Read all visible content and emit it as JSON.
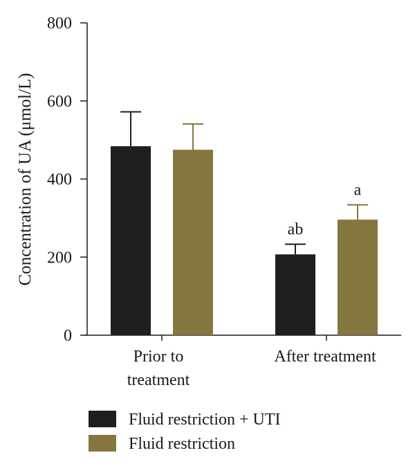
{
  "chart_data": {
    "type": "bar",
    "ylabel": "Concentration of UA (μmol/L)",
    "ylim": [
      0,
      800
    ],
    "yticks": [
      "0",
      "200",
      "400",
      "600",
      "800"
    ],
    "grid": false,
    "legend_position": "bottom",
    "categories": [
      {
        "lines": [
          "Prior to",
          "treatment"
        ]
      },
      {
        "lines": [
          "After treatment"
        ]
      }
    ],
    "series": [
      {
        "name": "Fluid restriction + UTI",
        "color": "#1e1e1e",
        "values": [
          484,
          207
        ],
        "errors": [
          88,
          26
        ],
        "annotations": [
          "",
          "ab"
        ]
      },
      {
        "name": "Fluid restriction",
        "color": "#857640",
        "values": [
          475,
          296
        ],
        "errors": [
          66,
          38
        ],
        "annotations": [
          "",
          "a"
        ]
      }
    ]
  }
}
